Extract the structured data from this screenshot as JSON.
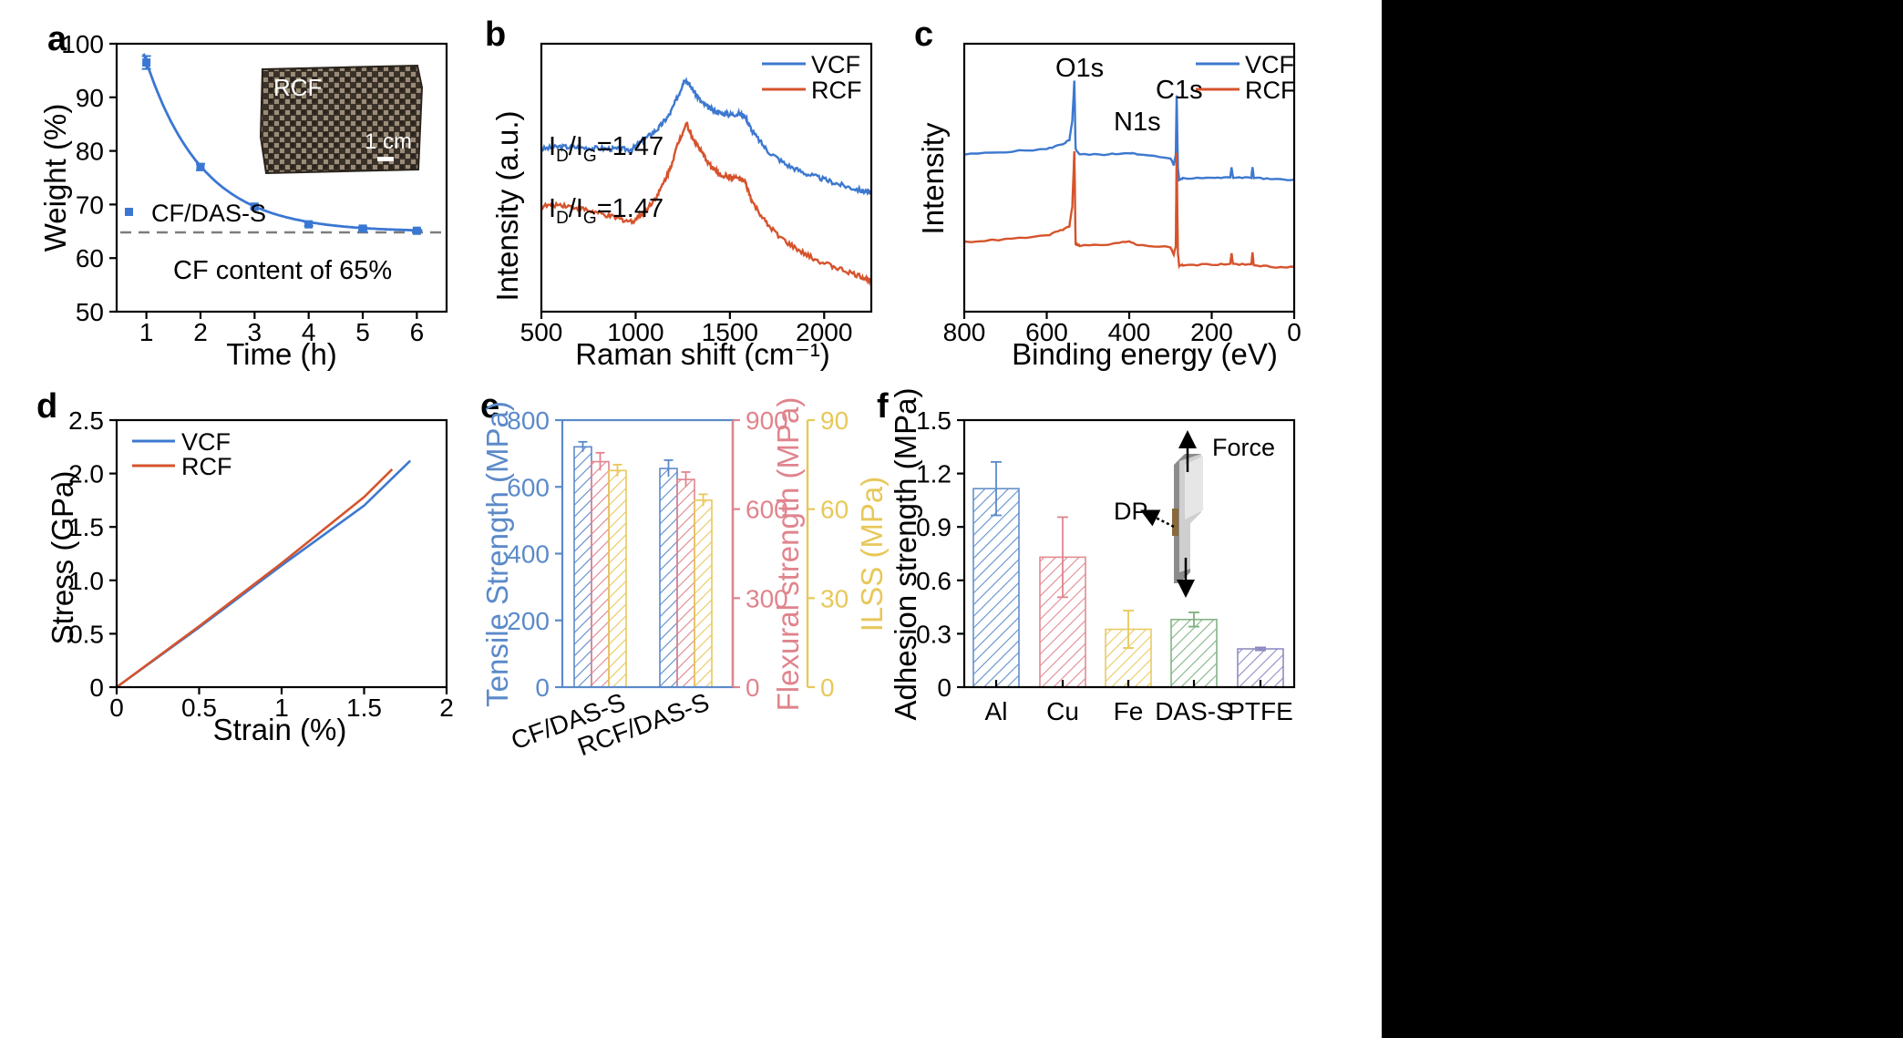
{
  "panels": {
    "a": "a",
    "b": "b",
    "c": "c",
    "d": "d",
    "e": "e",
    "f": "f"
  },
  "chart_data": [
    {
      "panel": "a",
      "type": "scatter",
      "xlabel": "Time (h)",
      "ylabel": "Weight (%)",
      "xlim": [
        0.45,
        6.55
      ],
      "ylim": [
        50,
        100
      ],
      "xticks": [
        1,
        2,
        3,
        4,
        5,
        6
      ],
      "yticks": [
        50,
        60,
        70,
        80,
        90,
        100
      ],
      "series": [
        {
          "name": "CF/DAS-S",
          "x": [
            1,
            2,
            3,
            4,
            5,
            6
          ],
          "y": [
            96.5,
            77,
            69.6,
            66.3,
            65.5,
            65.1
          ],
          "err": [
            1.2,
            0.6,
            0.3,
            0.3,
            0.3,
            0.2
          ],
          "color": "#3a77d2"
        }
      ],
      "fit_curve": {
        "type": "exponential",
        "asymptote": 64.9,
        "amplitude": 82,
        "decay": 0.95
      },
      "reference_line": {
        "y": 64.8,
        "style": "dashed",
        "color": "#7d7d7d"
      },
      "annotations": [
        "CF content of 65%"
      ],
      "inset": {
        "label": "RCF",
        "scale_bar": "1 cm"
      },
      "legend_position": "left"
    },
    {
      "panel": "b",
      "type": "line",
      "xlabel": "Raman shift (cm⁻¹)",
      "ylabel": "Intensity (a.u.)",
      "xlim": [
        500,
        2250
      ],
      "xticks": [
        500,
        1000,
        1500,
        2000
      ],
      "series": [
        {
          "name": "VCF",
          "color": "#3d78cf",
          "x": [
            500,
            600,
            700,
            800,
            900,
            980,
            1050,
            1120,
            1180,
            1230,
            1260,
            1300,
            1350,
            1400,
            1450,
            1500,
            1550,
            1580,
            1620,
            1700,
            1800,
            1900,
            2000,
            2100,
            2200,
            2250
          ],
          "y": [
            3.4,
            3.55,
            3.5,
            3.45,
            3.4,
            3.4,
            4.0,
            4.6,
            5.4,
            6.6,
            7.5,
            6.9,
            6.1,
            5.7,
            5.5,
            5.4,
            5.45,
            5.3,
            4.4,
            3.3,
            2.5,
            2.0,
            1.65,
            1.3,
            1.0,
            0.9
          ]
        },
        {
          "name": "RCF",
          "color": "#d6532c",
          "x": [
            500,
            600,
            700,
            800,
            900,
            980,
            1050,
            1120,
            1180,
            1230,
            1270,
            1300,
            1350,
            1400,
            1450,
            1500,
            1550,
            1580,
            1620,
            1700,
            1800,
            1900,
            2000,
            2100,
            2200,
            2250
          ],
          "y": [
            0.1,
            0.2,
            0.0,
            -0.3,
            -0.6,
            -0.8,
            -0.2,
            0.8,
            2.2,
            3.9,
            4.9,
            4.1,
            3.2,
            2.4,
            1.9,
            1.8,
            1.7,
            1.5,
            0.3,
            -1.0,
            -2.0,
            -2.7,
            -3.2,
            -3.6,
            -4.0,
            -4.2
          ]
        }
      ],
      "annotations": [
        "I_D/I_G=1.47",
        "I_D/I_G=1.47"
      ],
      "legend_position": "top-right"
    },
    {
      "panel": "c",
      "type": "line",
      "xlabel": "Binding energy (eV)",
      "ylabel": "Intensity",
      "xlim": [
        800,
        0
      ],
      "xticks": [
        800,
        600,
        400,
        200,
        0
      ],
      "series": [
        {
          "name": "VCF",
          "color": "#3d78cf",
          "x": [
            800,
            700,
            600,
            560,
            545,
            538,
            533,
            530,
            520,
            450,
            400,
            380,
            300,
            292,
            287,
            285,
            282,
            279,
            270,
            200,
            155,
            152,
            148,
            104,
            101,
            98,
            50,
            0
          ],
          "y": [
            4.3,
            4.45,
            4.6,
            4.9,
            5.1,
            6.2,
            8.4,
            4.6,
            4.3,
            4.3,
            4.4,
            4.3,
            4.1,
            3.7,
            4.3,
            7.6,
            3.6,
            2.9,
            2.95,
            3.0,
            3.0,
            3.6,
            3.0,
            3.0,
            3.6,
            3.0,
            2.9,
            2.9
          ]
        },
        {
          "name": "RCF",
          "color": "#d6532c",
          "x": [
            800,
            700,
            600,
            560,
            545,
            538,
            533,
            530,
            520,
            450,
            400,
            380,
            300,
            292,
            287,
            285,
            282,
            279,
            270,
            200,
            155,
            152,
            148,
            104,
            101,
            98,
            50,
            0
          ],
          "y": [
            -0.6,
            -0.45,
            -0.25,
            0.1,
            0.3,
            1.4,
            4.5,
            -0.7,
            -0.8,
            -0.75,
            -0.55,
            -0.75,
            -0.9,
            -1.3,
            -0.8,
            4.4,
            -1.2,
            -1.9,
            -1.9,
            -1.85,
            -1.85,
            -1.2,
            -1.85,
            -1.85,
            -1.2,
            -1.9,
            -2.0,
            -2.0
          ]
        }
      ],
      "annotations": [
        "O1s",
        "N1s",
        "C1s"
      ],
      "legend_position": "top-right"
    },
    {
      "panel": "d",
      "type": "line",
      "xlabel": "Strain (%)",
      "ylabel": "Stress (GPa)",
      "xlim": [
        0,
        2
      ],
      "ylim": [
        0,
        2.5
      ],
      "xticks": [
        0,
        0.5,
        1,
        1.5,
        2
      ],
      "yticks": [
        0,
        0.5,
        1.0,
        1.5,
        2.0,
        2.5
      ],
      "series": [
        {
          "name": "VCF",
          "color": "#3d78cf",
          "x": [
            0,
            0.5,
            1.0,
            1.5,
            1.78
          ],
          "y": [
            0,
            0.56,
            1.14,
            1.7,
            2.12
          ]
        },
        {
          "name": "RCF",
          "color": "#d6532c",
          "x": [
            0,
            0.5,
            1.0,
            1.5,
            1.67
          ],
          "y": [
            0,
            0.57,
            1.16,
            1.78,
            2.04
          ]
        }
      ],
      "legend_position": "top-left"
    },
    {
      "panel": "e",
      "type": "bar",
      "categories": [
        "CF/DAS-S",
        "RCF/DAS-S"
      ],
      "series": [
        {
          "name": "Tensile Strength (MPa)",
          "color": "#5b8ac9",
          "axis_ylim": [
            0,
            800
          ],
          "values": [
            720,
            655
          ],
          "err": [
            15,
            25
          ]
        },
        {
          "name": "Flexural strength (MPa)",
          "color": "#e0848d",
          "axis_ylim": [
            0,
            900
          ],
          "values": [
            760,
            700
          ],
          "err": [
            30,
            25
          ]
        },
        {
          "name": "ILSS (MPa)",
          "color": "#e8c85a",
          "axis_ylim": [
            0,
            90
          ],
          "values": [
            73,
            63
          ],
          "err": [
            2,
            2
          ]
        }
      ],
      "yticks_left": [
        0,
        200,
        400,
        600,
        800
      ],
      "yticks_mid": [
        0,
        300,
        600,
        900
      ],
      "yticks_right": [
        0,
        30,
        60,
        90
      ]
    },
    {
      "panel": "f",
      "type": "bar",
      "categories": [
        "Al",
        "Cu",
        "Fe",
        "DAS-S",
        "PTFE"
      ],
      "values": [
        1.115,
        0.73,
        0.325,
        0.38,
        0.215
      ],
      "err": [
        0.15,
        0.225,
        0.105,
        0.04,
        0.008
      ],
      "colors": [
        "#5b8ac9",
        "#e0848d",
        "#e8c85a",
        "#7db07f",
        "#8a86c0"
      ],
      "ylabel": "Adhesion strength (MPa)",
      "ylim": [
        0,
        1.5
      ],
      "yticks": [
        0,
        0.3,
        0.6,
        0.9,
        1.2,
        1.5
      ],
      "inset_labels": [
        "Force",
        "DP"
      ]
    }
  ]
}
